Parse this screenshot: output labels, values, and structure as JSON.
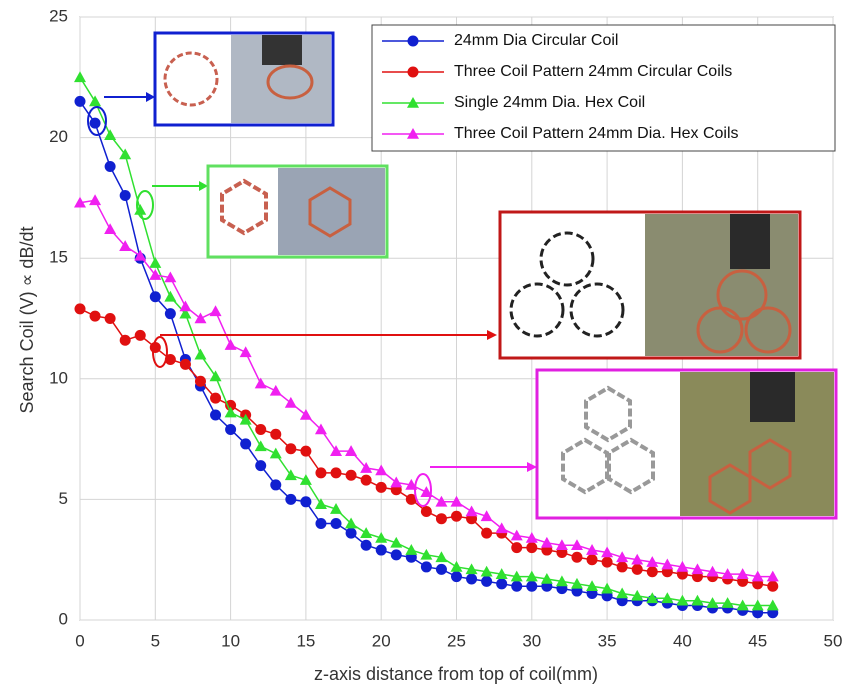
{
  "chart_data": {
    "type": "line",
    "x_label": "z-axis distance from top of coil(mm)",
    "y_label": "Search Coil (V) ∝ dB/dt",
    "x": [
      0,
      1,
      2,
      3,
      4,
      5,
      6,
      7,
      8,
      9,
      10,
      11,
      12,
      13,
      14,
      15,
      16,
      17,
      18,
      19,
      20,
      21,
      22,
      23,
      24,
      25,
      26,
      27,
      28,
      29,
      30,
      31,
      32,
      33,
      34,
      35,
      36,
      37,
      38,
      39,
      40,
      41,
      42,
      43,
      44,
      45,
      46
    ],
    "series": [
      {
        "name": "24mm Dia Circular Coil",
        "color": "#1020d0",
        "marker": "circle",
        "values": [
          21.5,
          20.6,
          18.8,
          17.6,
          15.0,
          13.4,
          12.7,
          10.8,
          9.7,
          8.5,
          7.9,
          7.3,
          6.4,
          5.6,
          5.0,
          4.9,
          4.0,
          4.0,
          3.6,
          3.1,
          2.9,
          2.7,
          2.6,
          2.2,
          2.1,
          1.8,
          1.7,
          1.6,
          1.5,
          1.4,
          1.4,
          1.4,
          1.3,
          1.2,
          1.1,
          1.0,
          0.8,
          0.8,
          0.8,
          0.7,
          0.6,
          0.6,
          0.5,
          0.5,
          0.4,
          0.3,
          0.3
        ]
      },
      {
        "name": "Three Coil Pattern 24mm Circular Coils",
        "color": "#e01010",
        "marker": "circle",
        "values": [
          12.9,
          12.6,
          12.5,
          11.6,
          11.8,
          11.3,
          10.8,
          10.6,
          9.9,
          9.2,
          8.9,
          8.5,
          7.9,
          7.7,
          7.1,
          7.0,
          6.1,
          6.1,
          6.0,
          5.8,
          5.5,
          5.4,
          5.0,
          4.5,
          4.2,
          4.3,
          4.2,
          3.6,
          3.6,
          3.0,
          3.0,
          2.9,
          2.8,
          2.6,
          2.5,
          2.4,
          2.2,
          2.1,
          2.0,
          2.0,
          1.9,
          1.8,
          1.8,
          1.7,
          1.6,
          1.5,
          1.4
        ]
      },
      {
        "name": "Single 24mm Dia. Hex Coil",
        "color": "#30e030",
        "marker": "triangle",
        "values": [
          22.5,
          21.5,
          20.1,
          19.3,
          17.0,
          14.8,
          13.4,
          12.7,
          11.0,
          10.1,
          8.6,
          8.3,
          7.2,
          6.9,
          6.0,
          5.8,
          4.8,
          4.6,
          4.0,
          3.6,
          3.4,
          3.2,
          2.9,
          2.7,
          2.6,
          2.2,
          2.1,
          2.0,
          1.9,
          1.8,
          1.8,
          1.7,
          1.6,
          1.5,
          1.4,
          1.3,
          1.1,
          1.0,
          0.9,
          0.9,
          0.8,
          0.8,
          0.7,
          0.7,
          0.6,
          0.6,
          0.6
        ]
      },
      {
        "name": "Three Coil Pattern 24mm Dia. Hex Coils",
        "color": "#f020f0",
        "marker": "triangle",
        "values": [
          17.3,
          17.4,
          16.2,
          15.5,
          15.1,
          14.3,
          14.2,
          13.0,
          12.5,
          12.8,
          11.4,
          11.1,
          9.8,
          9.5,
          9.0,
          8.5,
          7.9,
          7.0,
          7.0,
          6.3,
          6.2,
          5.7,
          5.6,
          5.3,
          4.9,
          4.9,
          4.5,
          4.3,
          3.8,
          3.5,
          3.4,
          3.2,
          3.1,
          3.1,
          2.9,
          2.8,
          2.6,
          2.5,
          2.4,
          2.3,
          2.2,
          2.1,
          2.0,
          1.9,
          1.9,
          1.8,
          1.8
        ]
      }
    ],
    "xlim": [
      0,
      50
    ],
    "ylim": [
      0,
      25
    ],
    "xticks": [
      0,
      5,
      10,
      15,
      20,
      25,
      30,
      35,
      40,
      45,
      50
    ],
    "yticks": [
      0,
      5,
      10,
      15,
      20,
      25
    ],
    "grid": true,
    "legend_position": "upper right"
  }
}
